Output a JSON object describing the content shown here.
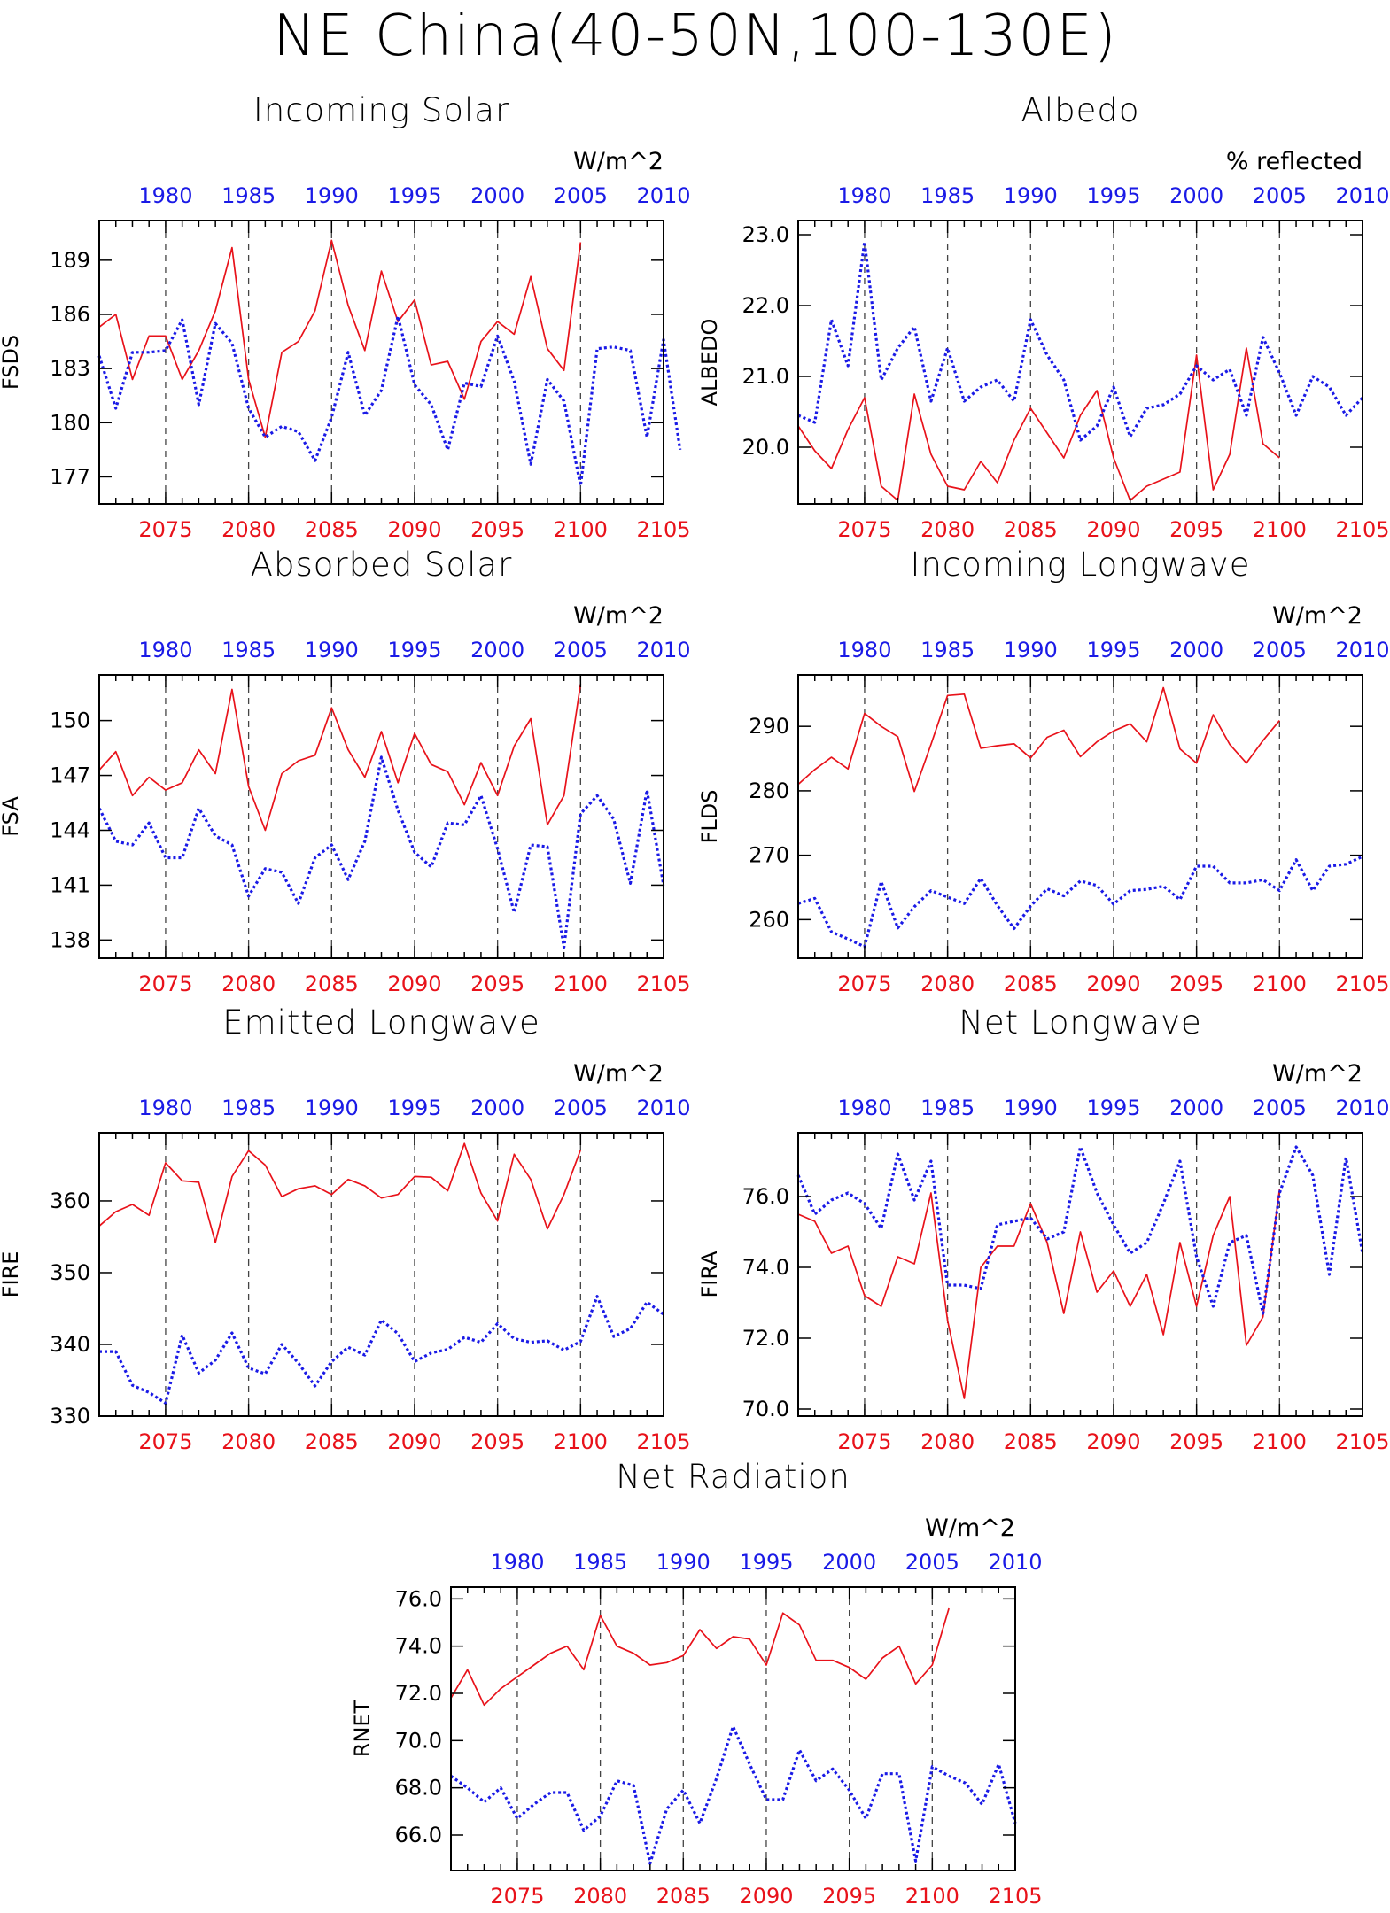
{
  "title": "NE China(40-50N,100-130E)",
  "colors": {
    "future": "#e8121a",
    "historical": "#1a1ae6",
    "axis": "#000000",
    "gridline": "#444444"
  },
  "chart_data": [
    {
      "type": "line",
      "title": "Incoming Solar",
      "units": "W/m^2",
      "ylabel": "FSDS",
      "ylim": [
        175.5,
        191.2
      ],
      "yticks": [
        177,
        180,
        183,
        186,
        189
      ],
      "ytick_labels": [
        "177",
        "180",
        "183",
        "186",
        "189"
      ],
      "bottom_axis": {
        "range": [
          2071,
          2105
        ],
        "ticks": [
          2075,
          2080,
          2085,
          2090,
          2095,
          2100,
          2105
        ]
      },
      "top_axis": {
        "range": [
          1976,
          2010
        ],
        "ticks": [
          1980,
          1985,
          1990,
          1995,
          2000,
          2005,
          2010
        ]
      },
      "gridlines_x": [
        2075,
        2080,
        2085,
        2090,
        2095,
        2100
      ],
      "series": [
        {
          "style": "solid",
          "axis": "bottom",
          "x_start": 2071,
          "values": [
            185.3,
            186.0,
            182.4,
            184.8,
            184.8,
            182.4,
            184.0,
            186.2,
            189.7,
            182.4,
            179.2,
            183.9,
            184.5,
            186.2,
            190.1,
            186.5,
            184.0,
            188.4,
            185.6,
            186.8,
            183.2,
            183.4,
            181.3,
            184.5,
            185.6,
            184.9,
            188.1,
            184.1,
            182.9,
            190.0
          ]
        },
        {
          "style": "dotted",
          "axis": "top",
          "x_start": 1976,
          "values": [
            183.7,
            180.8,
            183.9,
            183.9,
            184.0,
            185.7,
            181.0,
            185.5,
            184.4,
            180.8,
            179.2,
            179.8,
            179.5,
            177.9,
            180.3,
            183.9,
            180.4,
            181.8,
            185.9,
            182.1,
            181.0,
            178.5,
            182.2,
            182.0,
            184.8,
            182.3,
            177.7,
            182.4,
            181.2,
            176.5,
            184.1,
            184.2,
            184.0,
            179.2,
            184.6,
            178.5
          ]
        }
      ]
    },
    {
      "type": "line",
      "title": "Albedo",
      "units": "% reflected",
      "ylabel": "ALBEDO",
      "ylim": [
        19.2,
        23.2
      ],
      "yticks": [
        20.0,
        21.0,
        22.0,
        23.0
      ],
      "ytick_labels": [
        "20.0",
        "21.0",
        "22.0",
        "23.0"
      ],
      "bottom_axis": {
        "range": [
          2071,
          2105
        ],
        "ticks": [
          2075,
          2080,
          2085,
          2090,
          2095,
          2100,
          2105
        ]
      },
      "top_axis": {
        "range": [
          1976,
          2010
        ],
        "ticks": [
          1980,
          1985,
          1990,
          1995,
          2000,
          2005,
          2010
        ]
      },
      "gridlines_x": [
        2075,
        2080,
        2085,
        2090,
        2095,
        2100
      ],
      "series": [
        {
          "style": "solid",
          "axis": "bottom",
          "x_start": 2071,
          "values": [
            20.3,
            19.95,
            19.7,
            20.25,
            20.7,
            19.45,
            19.25,
            20.75,
            19.9,
            19.45,
            19.4,
            19.8,
            19.5,
            20.1,
            20.55,
            20.2,
            19.85,
            20.45,
            20.8,
            19.85,
            19.25,
            19.45,
            19.55,
            19.65,
            21.3,
            19.4,
            19.9,
            21.4,
            20.05,
            19.85
          ]
        },
        {
          "style": "dotted",
          "axis": "top",
          "x_start": 1976,
          "values": [
            20.45,
            20.35,
            21.8,
            21.15,
            22.9,
            20.95,
            21.4,
            21.7,
            20.65,
            21.4,
            20.65,
            20.85,
            20.95,
            20.65,
            21.8,
            21.3,
            20.95,
            20.1,
            20.3,
            20.85,
            20.15,
            20.55,
            20.6,
            20.75,
            21.15,
            20.95,
            21.1,
            20.45,
            21.55,
            21.05,
            20.45,
            21.0,
            20.85,
            20.45,
            20.7
          ]
        }
      ]
    },
    {
      "type": "line",
      "title": "Absorbed Solar",
      "units": "W/m^2",
      "ylabel": "FSA",
      "ylim": [
        137.0,
        152.5
      ],
      "yticks": [
        138,
        141,
        144,
        147,
        150
      ],
      "ytick_labels": [
        "138",
        "141",
        "144",
        "147",
        "150"
      ],
      "bottom_axis": {
        "range": [
          2071,
          2105
        ],
        "ticks": [
          2075,
          2080,
          2085,
          2090,
          2095,
          2100,
          2105
        ]
      },
      "top_axis": {
        "range": [
          1976,
          2010
        ],
        "ticks": [
          1980,
          1985,
          1990,
          1995,
          2000,
          2005,
          2010
        ]
      },
      "gridlines_x": [
        2075,
        2080,
        2085,
        2090,
        2095,
        2100
      ],
      "series": [
        {
          "style": "solid",
          "axis": "bottom",
          "x_start": 2071,
          "values": [
            147.3,
            148.3,
            145.9,
            146.9,
            146.2,
            146.6,
            148.4,
            147.1,
            151.7,
            146.4,
            144.0,
            147.1,
            147.8,
            148.1,
            150.7,
            148.4,
            146.9,
            149.4,
            146.6,
            149.3,
            147.6,
            147.2,
            145.4,
            147.7,
            145.9,
            148.6,
            150.1,
            144.3,
            145.9,
            152.0
          ]
        },
        {
          "style": "dotted",
          "axis": "top",
          "x_start": 1976,
          "values": [
            145.2,
            143.4,
            143.2,
            144.4,
            142.5,
            142.5,
            145.2,
            143.7,
            143.2,
            140.4,
            141.9,
            141.7,
            140.0,
            142.5,
            143.2,
            141.3,
            143.4,
            148.0,
            145.1,
            142.8,
            142.0,
            144.4,
            144.3,
            145.9,
            143.0,
            139.5,
            143.2,
            143.1,
            137.6,
            144.9,
            145.9,
            144.6,
            141.1,
            146.2,
            141.0
          ]
        }
      ]
    },
    {
      "type": "line",
      "title": "Incoming Longwave",
      "units": "W/m^2",
      "ylabel": "FLDS",
      "ylim": [
        254,
        298
      ],
      "yticks": [
        260,
        270,
        280,
        290
      ],
      "ytick_labels": [
        "260",
        "270",
        "280",
        "290"
      ],
      "bottom_axis": {
        "range": [
          2071,
          2105
        ],
        "ticks": [
          2075,
          2080,
          2085,
          2090,
          2095,
          2100,
          2105
        ]
      },
      "top_axis": {
        "range": [
          1976,
          2010
        ],
        "ticks": [
          1980,
          1985,
          1990,
          1995,
          2000,
          2005,
          2010
        ]
      },
      "gridlines_x": [
        2075,
        2080,
        2085,
        2090,
        2095,
        2100
      ],
      "series": [
        {
          "style": "solid",
          "axis": "bottom",
          "x_start": 2071,
          "values": [
            281.0,
            283.3,
            285.2,
            283.4,
            292.0,
            290.0,
            288.4,
            279.9,
            287.2,
            294.8,
            295.0,
            286.6,
            287.0,
            287.3,
            285.1,
            288.3,
            289.4,
            285.3,
            287.6,
            289.3,
            290.4,
            287.6,
            296.0,
            286.5,
            284.3,
            291.8,
            287.2,
            284.3,
            287.8,
            290.9
          ]
        },
        {
          "style": "dotted",
          "axis": "top",
          "x_start": 1976,
          "values": [
            262.5,
            263.3,
            258.1,
            257.0,
            255.8,
            265.9,
            258.7,
            262.0,
            264.5,
            263.5,
            262.5,
            266.4,
            262.2,
            258.6,
            262.1,
            264.8,
            263.7,
            266.0,
            265.3,
            262.4,
            264.5,
            264.7,
            265.2,
            263.1,
            268.3,
            268.3,
            265.7,
            265.7,
            266.2,
            264.5,
            269.3,
            264.5,
            268.3,
            268.6,
            269.8
          ]
        }
      ]
    },
    {
      "type": "line",
      "title": "Emitted Longwave",
      "units": "W/m^2",
      "ylabel": "FIRE",
      "ylim": [
        330,
        369.5
      ],
      "yticks": [
        330,
        340,
        350,
        360
      ],
      "ytick_labels": [
        "330",
        "340",
        "350",
        "360"
      ],
      "bottom_axis": {
        "range": [
          2071,
          2105
        ],
        "ticks": [
          2075,
          2080,
          2085,
          2090,
          2095,
          2100,
          2105
        ]
      },
      "top_axis": {
        "range": [
          1976,
          2010
        ],
        "ticks": [
          1980,
          1985,
          1990,
          1995,
          2000,
          2005,
          2010
        ]
      },
      "gridlines_x": [
        2075,
        2080,
        2085,
        2090,
        2095,
        2100
      ],
      "series": [
        {
          "style": "solid",
          "axis": "bottom",
          "x_start": 2071,
          "values": [
            356.5,
            358.5,
            359.5,
            358.0,
            365.3,
            362.8,
            362.6,
            354.2,
            363.4,
            367.0,
            365.0,
            360.6,
            361.7,
            362.1,
            360.9,
            363.0,
            362.1,
            360.4,
            360.9,
            363.4,
            363.3,
            361.4,
            368.0,
            361.1,
            357.2,
            366.5,
            363.0,
            356.1,
            360.9,
            367.1
          ]
        },
        {
          "style": "dotted",
          "axis": "top",
          "x_start": 1976,
          "values": [
            339.0,
            339.0,
            334.3,
            333.3,
            331.8,
            341.3,
            336.0,
            337.8,
            341.6,
            336.7,
            335.9,
            340.0,
            337.4,
            334.2,
            337.6,
            339.6,
            338.5,
            343.4,
            341.5,
            337.6,
            338.8,
            339.3,
            341.0,
            340.3,
            342.9,
            340.8,
            340.3,
            340.5,
            339.2,
            340.4,
            346.7,
            341.1,
            342.2,
            345.9,
            344.2
          ]
        }
      ]
    },
    {
      "type": "line",
      "title": "Net Longwave",
      "units": "W/m^2",
      "ylabel": "FIRA",
      "ylim": [
        69.8,
        77.8
      ],
      "yticks": [
        70.0,
        72.0,
        74.0,
        76.0
      ],
      "ytick_labels": [
        "70.0",
        "72.0",
        "74.0",
        "76.0"
      ],
      "bottom_axis": {
        "range": [
          2071,
          2105
        ],
        "ticks": [
          2075,
          2080,
          2085,
          2090,
          2095,
          2100,
          2105
        ]
      },
      "top_axis": {
        "range": [
          1976,
          2010
        ],
        "ticks": [
          1980,
          1985,
          1990,
          1995,
          2000,
          2005,
          2010
        ]
      },
      "gridlines_x": [
        2075,
        2080,
        2085,
        2090,
        2095,
        2100
      ],
      "series": [
        {
          "style": "solid",
          "axis": "bottom",
          "x_start": 2071,
          "values": [
            75.5,
            75.3,
            74.4,
            74.6,
            73.2,
            72.9,
            74.3,
            74.1,
            76.1,
            72.5,
            70.3,
            74.0,
            74.6,
            74.6,
            75.8,
            74.7,
            72.7,
            75.0,
            73.3,
            73.9,
            72.9,
            73.8,
            72.1,
            74.7,
            72.9,
            74.9,
            76.0,
            71.8,
            72.6,
            76.2
          ]
        },
        {
          "style": "dotted",
          "axis": "top",
          "x_start": 1976,
          "values": [
            76.6,
            75.5,
            75.9,
            76.1,
            75.8,
            75.1,
            77.2,
            75.9,
            77.0,
            73.5,
            73.5,
            73.4,
            75.2,
            75.3,
            75.4,
            74.8,
            75.0,
            77.4,
            76.1,
            75.2,
            74.4,
            74.7,
            75.8,
            77.0,
            74.3,
            72.9,
            74.7,
            74.9,
            72.7,
            76.1,
            77.4,
            76.6,
            73.8,
            77.1,
            74.4
          ]
        }
      ]
    },
    {
      "type": "line",
      "title": "Net Radiation",
      "units": "W/m^2",
      "ylabel": "RNET",
      "ylim": [
        64.5,
        76.5
      ],
      "yticks": [
        66.0,
        68.0,
        70.0,
        72.0,
        74.0,
        76.0
      ],
      "ytick_labels": [
        "66.0",
        "68.0",
        "70.0",
        "72.0",
        "74.0",
        "76.0"
      ],
      "bottom_axis": {
        "range": [
          2071,
          2105
        ],
        "ticks": [
          2075,
          2080,
          2085,
          2090,
          2095,
          2100,
          2105
        ]
      },
      "top_axis": {
        "range": [
          1976,
          2010
        ],
        "ticks": [
          1980,
          1985,
          1990,
          1995,
          2000,
          2005,
          2010
        ]
      },
      "gridlines_x": [
        2075,
        2080,
        2085,
        2090,
        2095,
        2100
      ],
      "series": [
        {
          "style": "solid",
          "axis": "bottom",
          "x_start": 2071,
          "values": [
            71.8,
            73.0,
            71.5,
            72.2,
            72.7,
            73.2,
            73.7,
            74.0,
            73.0,
            75.3,
            74.0,
            73.7,
            73.2,
            73.3,
            73.6,
            74.7,
            73.9,
            74.4,
            74.3,
            73.2,
            75.4,
            74.9,
            73.4,
            73.4,
            73.1,
            72.6,
            73.5,
            74.0,
            72.4,
            73.2,
            75.6
          ]
        },
        {
          "style": "dotted",
          "axis": "top",
          "x_start": 1976,
          "values": [
            68.5,
            68.0,
            67.4,
            68.0,
            66.7,
            67.3,
            67.8,
            67.8,
            66.2,
            66.8,
            68.3,
            68.1,
            64.8,
            67.1,
            67.9,
            66.5,
            68.4,
            70.6,
            69.0,
            67.5,
            67.5,
            69.6,
            68.3,
            68.8,
            67.9,
            66.7,
            68.6,
            68.6,
            64.9,
            68.9,
            68.5,
            68.2,
            67.3,
            69.0,
            66.5
          ]
        }
      ]
    }
  ]
}
